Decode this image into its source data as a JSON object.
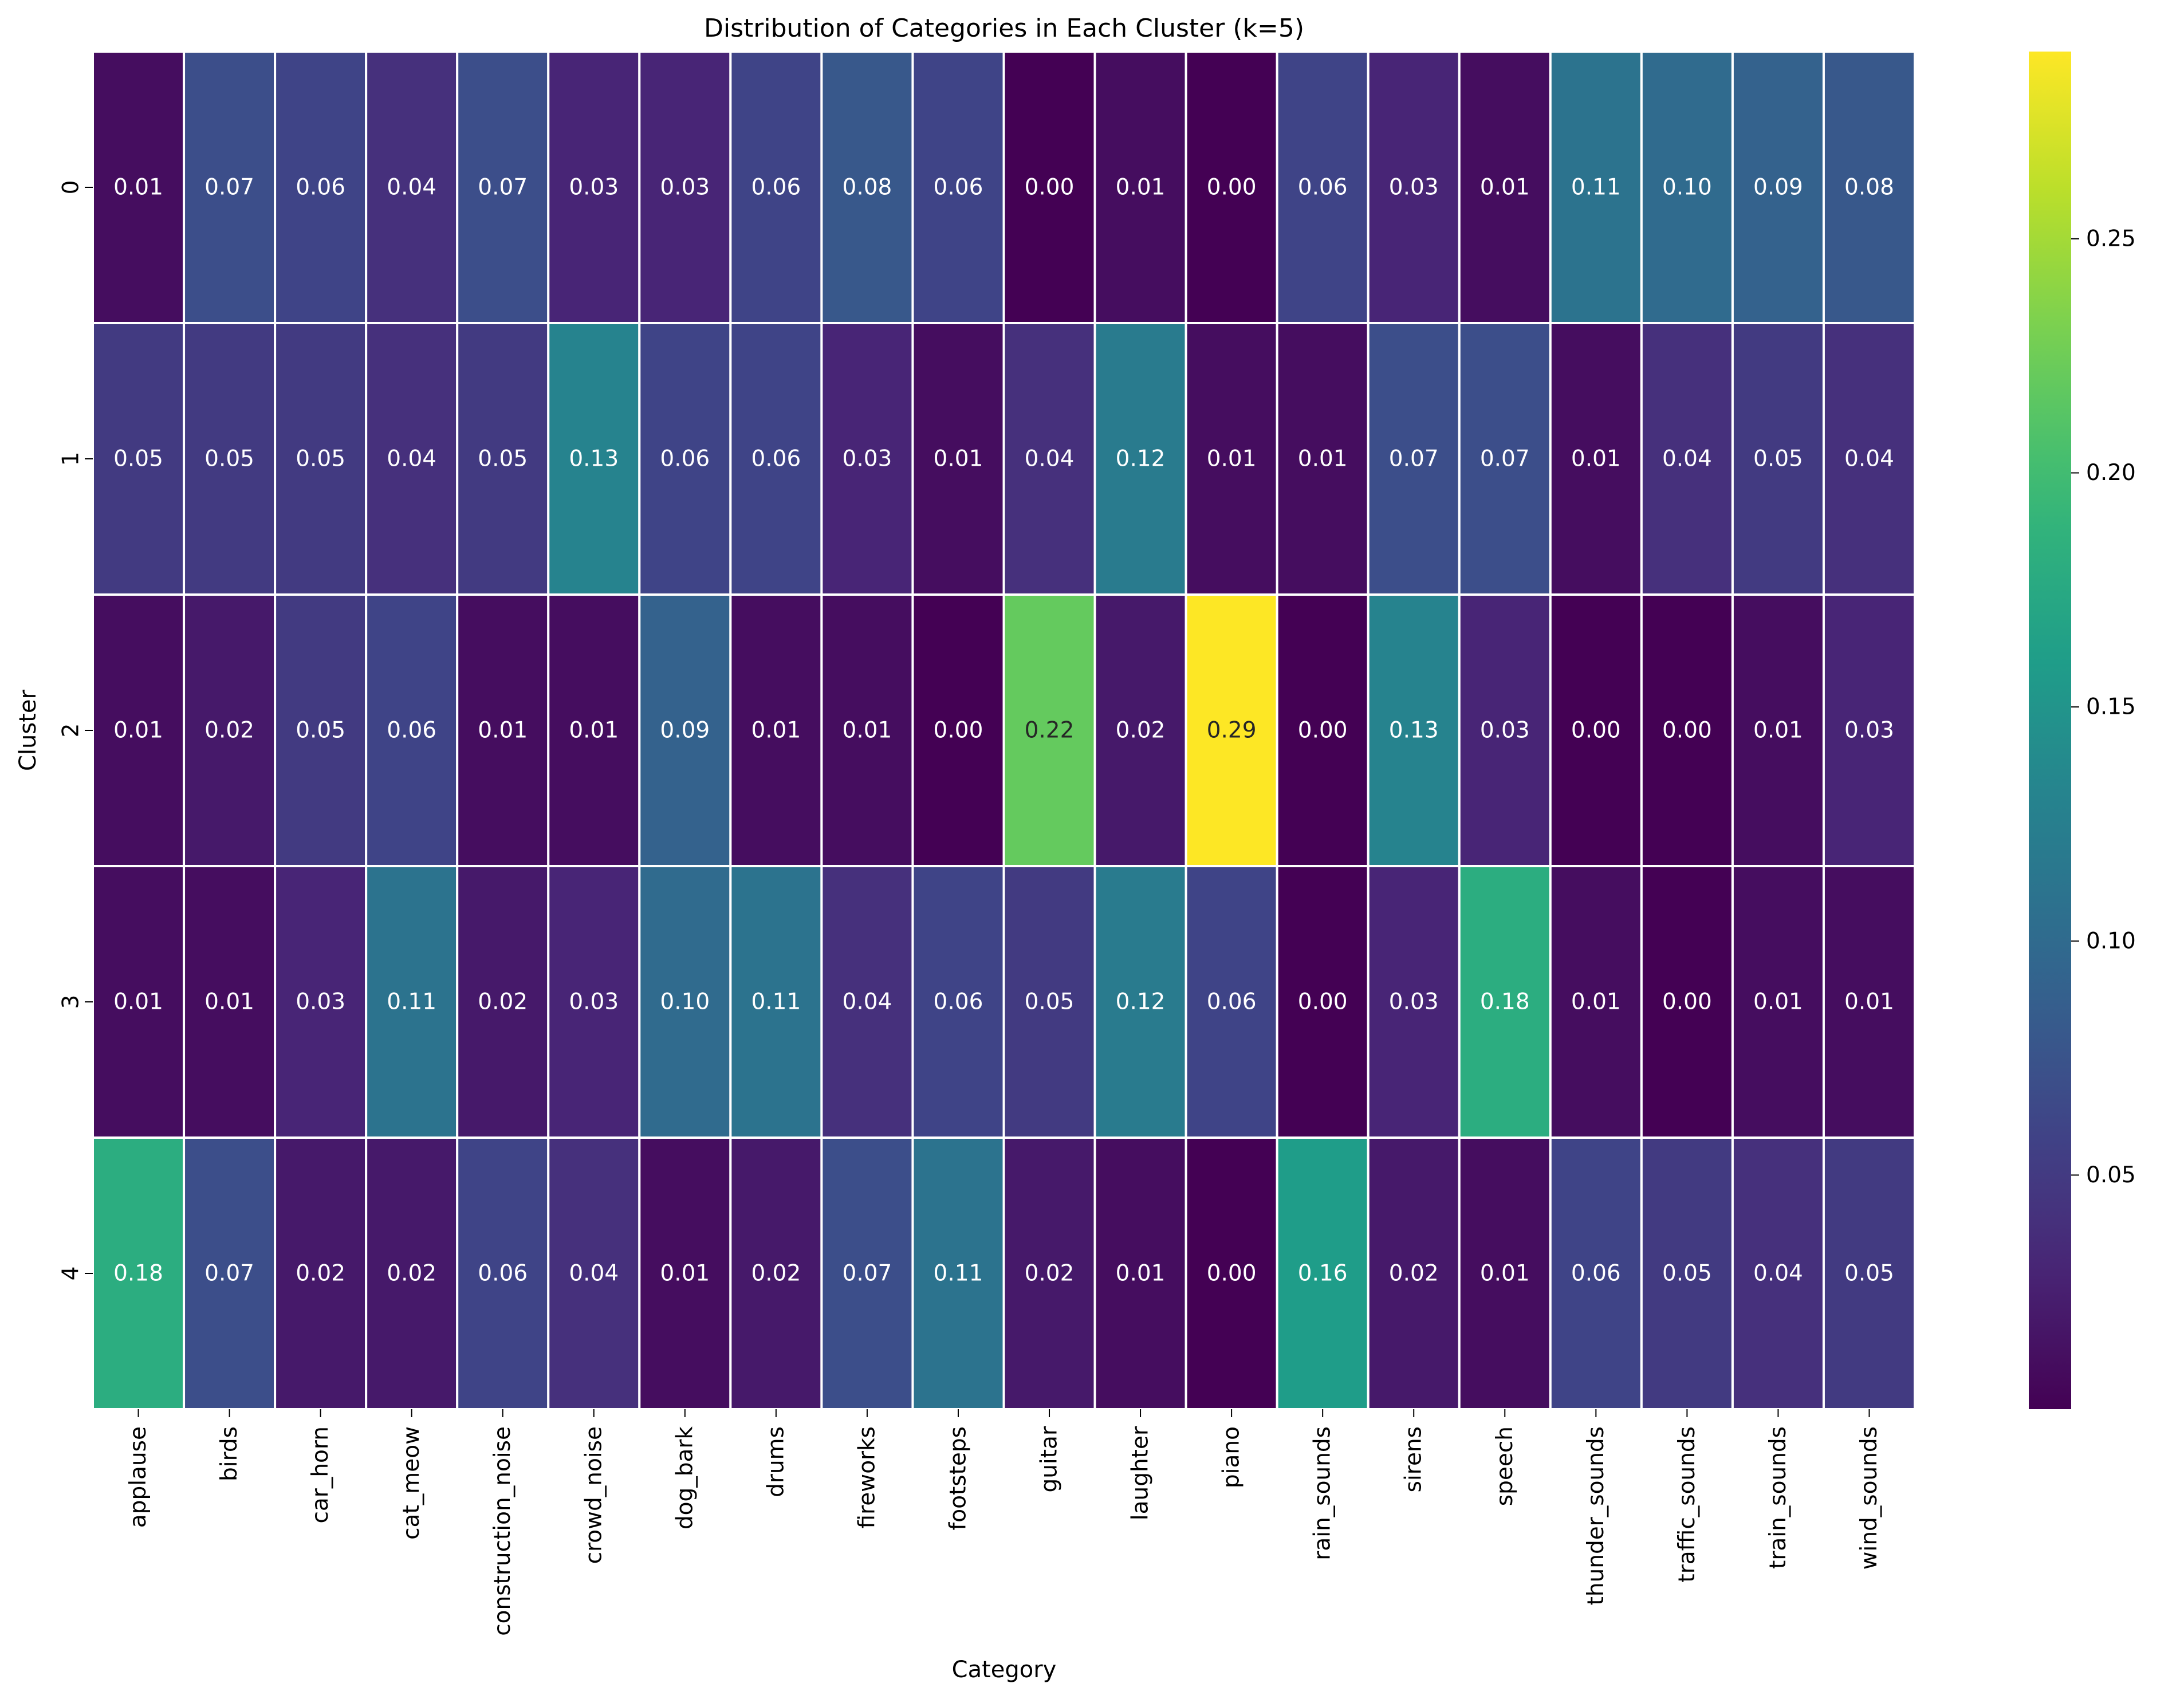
{
  "chart_data": {
    "type": "heatmap",
    "title": "Distribution of Categories in Each Cluster (k=5)",
    "xlabel": "Category",
    "ylabel": "Cluster",
    "x_categories": [
      "applause",
      "birds",
      "car_horn",
      "cat_meow",
      "construction_noise",
      "crowd_noise",
      "dog_bark",
      "drums",
      "fireworks",
      "footsteps",
      "guitar",
      "laughter",
      "piano",
      "rain_sounds",
      "sirens",
      "speech",
      "thunder_sounds",
      "traffic_sounds",
      "train_sounds",
      "wind_sounds"
    ],
    "y_categories": [
      "0",
      "1",
      "2",
      "3",
      "4"
    ],
    "values": [
      [
        0.01,
        0.07,
        0.06,
        0.04,
        0.07,
        0.03,
        0.03,
        0.06,
        0.08,
        0.06,
        0.0,
        0.01,
        0.0,
        0.06,
        0.03,
        0.01,
        0.11,
        0.1,
        0.09,
        0.08
      ],
      [
        0.05,
        0.05,
        0.05,
        0.04,
        0.05,
        0.13,
        0.06,
        0.06,
        0.03,
        0.01,
        0.04,
        0.12,
        0.01,
        0.01,
        0.07,
        0.07,
        0.01,
        0.04,
        0.05,
        0.04
      ],
      [
        0.01,
        0.02,
        0.05,
        0.06,
        0.01,
        0.01,
        0.09,
        0.01,
        0.01,
        0.0,
        0.22,
        0.02,
        0.29,
        0.0,
        0.13,
        0.03,
        0.0,
        0.0,
        0.01,
        0.03
      ],
      [
        0.01,
        0.01,
        0.03,
        0.11,
        0.02,
        0.03,
        0.1,
        0.11,
        0.04,
        0.06,
        0.05,
        0.12,
        0.06,
        0.0,
        0.03,
        0.18,
        0.01,
        0.0,
        0.01,
        0.01
      ],
      [
        0.18,
        0.07,
        0.02,
        0.02,
        0.06,
        0.04,
        0.01,
        0.02,
        0.07,
        0.11,
        0.02,
        0.01,
        0.0,
        0.16,
        0.02,
        0.01,
        0.06,
        0.05,
        0.04,
        0.05
      ]
    ],
    "colormap": "viridis",
    "vmin": 0.0,
    "vmax": 0.29,
    "colorbar_ticks": [
      0.05,
      0.1,
      0.15,
      0.2,
      0.25
    ],
    "colorbar_tick_labels": [
      "0.05",
      "0.10",
      "0.15",
      "0.20",
      "0.25"
    ],
    "annotation_format": "0.00",
    "cell_border_color": "#ffffff"
  }
}
